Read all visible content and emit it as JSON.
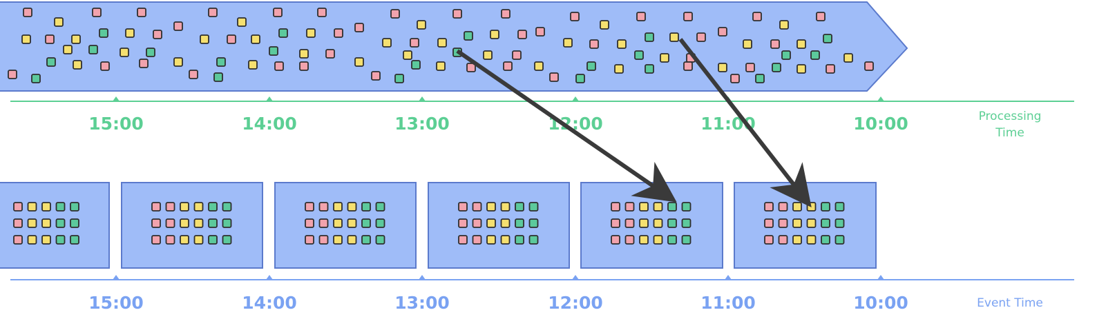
{
  "processing_axis": {
    "name_line1": "Processing",
    "name_line2": "Time",
    "ticks": [
      "15:00",
      "14:00",
      "13:00",
      "12:00",
      "11:00",
      "10:00"
    ]
  },
  "event_axis": {
    "name": "Event Time",
    "ticks": [
      "15:00",
      "14:00",
      "13:00",
      "12:00",
      "11:00",
      "10:00"
    ]
  },
  "colors": {
    "band_fill": "#9fbcf8",
    "band_stroke": "#5b7acc",
    "processing_axis": "#5ccf94",
    "event_axis": "#7aa2f2",
    "square_red": "#f2a3ad",
    "square_yellow": "#f5e070",
    "square_green": "#5cc99c",
    "square_stroke": "#2e2e2e",
    "arrow": "#3a3a3a"
  },
  "window_rows": [
    [
      "red",
      "red",
      "yellow",
      "yellow",
      "green",
      "green"
    ],
    [
      "red",
      "red",
      "yellow",
      "yellow",
      "green",
      "green"
    ],
    [
      "red",
      "red",
      "yellow",
      "yellow",
      "green",
      "green"
    ]
  ]
}
